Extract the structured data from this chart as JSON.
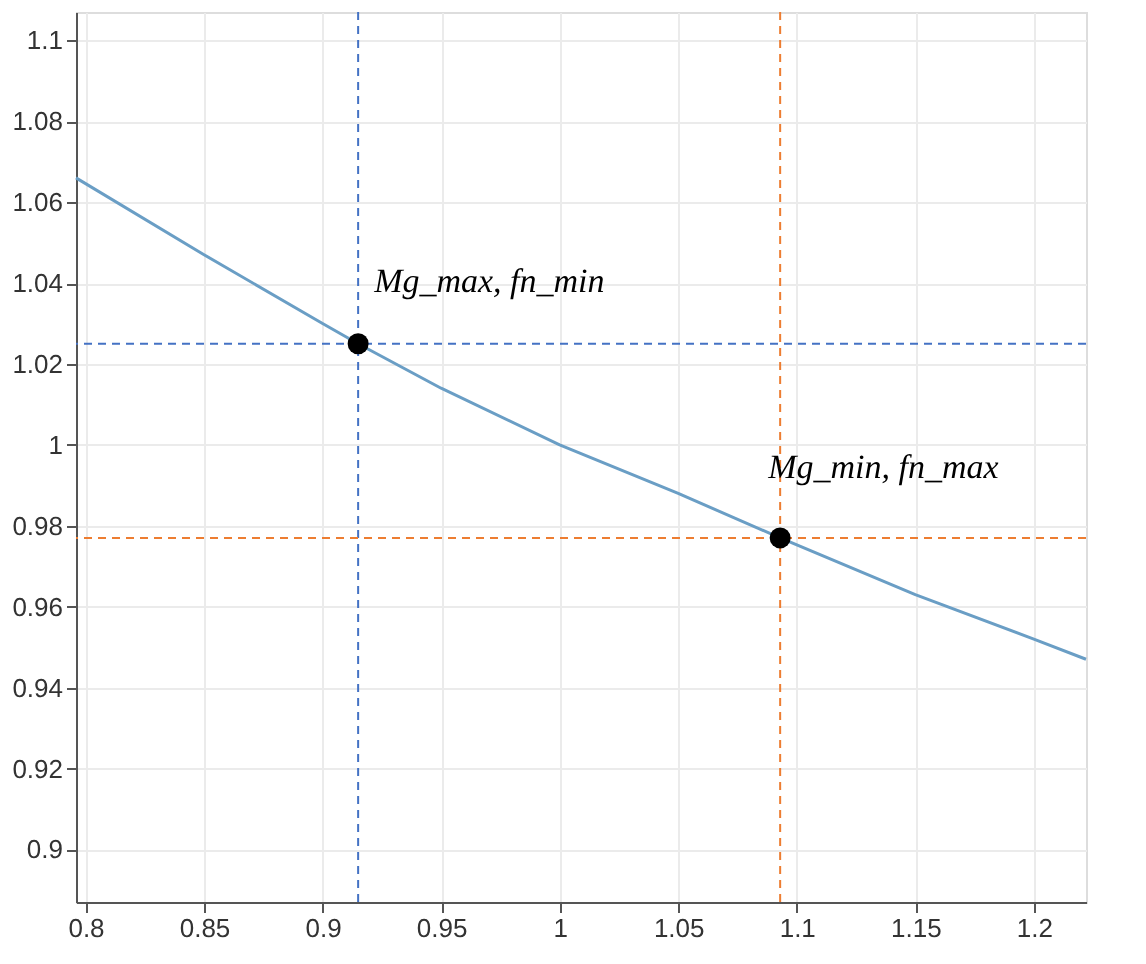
{
  "chart_data": {
    "type": "line",
    "xlim": [
      0.796,
      1.222
    ],
    "ylim": [
      0.887,
      1.107
    ],
    "xticks": [
      0.8,
      0.85,
      0.9,
      0.95,
      1,
      1.05,
      1.1,
      1.15,
      1.2
    ],
    "yticks": [
      0.9,
      0.92,
      0.94,
      0.96,
      0.98,
      1,
      1.02,
      1.04,
      1.06,
      1.08,
      1.1
    ],
    "grid": true,
    "series": [
      {
        "color": "#6a9ec5",
        "marker": "none",
        "x": [
          0.796,
          0.85,
          0.9,
          0.915,
          0.95,
          1.0,
          1.05,
          1.093,
          1.15,
          1.2,
          1.222
        ],
        "values": [
          1.066,
          1.047,
          1.03,
          1.025,
          1.014,
          1.0,
          0.988,
          0.977,
          0.963,
          0.952,
          0.947
        ]
      },
      {
        "type": "scatter",
        "color": "#000000",
        "marker": "circle",
        "x": [
          0.915,
          1.093
        ],
        "values": [
          1.025,
          0.977
        ]
      }
    ],
    "ref_lines": [
      {
        "axis": "x",
        "value": 0.915,
        "color": "#4472c4",
        "line_style": "dashed"
      },
      {
        "axis": "y",
        "value": 1.025,
        "color": "#4472c4",
        "line_style": "dashed"
      },
      {
        "axis": "x",
        "value": 1.093,
        "color": "#ed7d31",
        "line_style": "dashed"
      },
      {
        "axis": "y",
        "value": 0.977,
        "color": "#ed7d31",
        "line_style": "dashed"
      }
    ],
    "annotations": [
      {
        "text": "Mg_max, fn_min",
        "x": 0.915,
        "y": 1.025
      },
      {
        "text": "Mg_min, fn_max",
        "x": 1.093,
        "y": 0.977
      }
    ]
  }
}
